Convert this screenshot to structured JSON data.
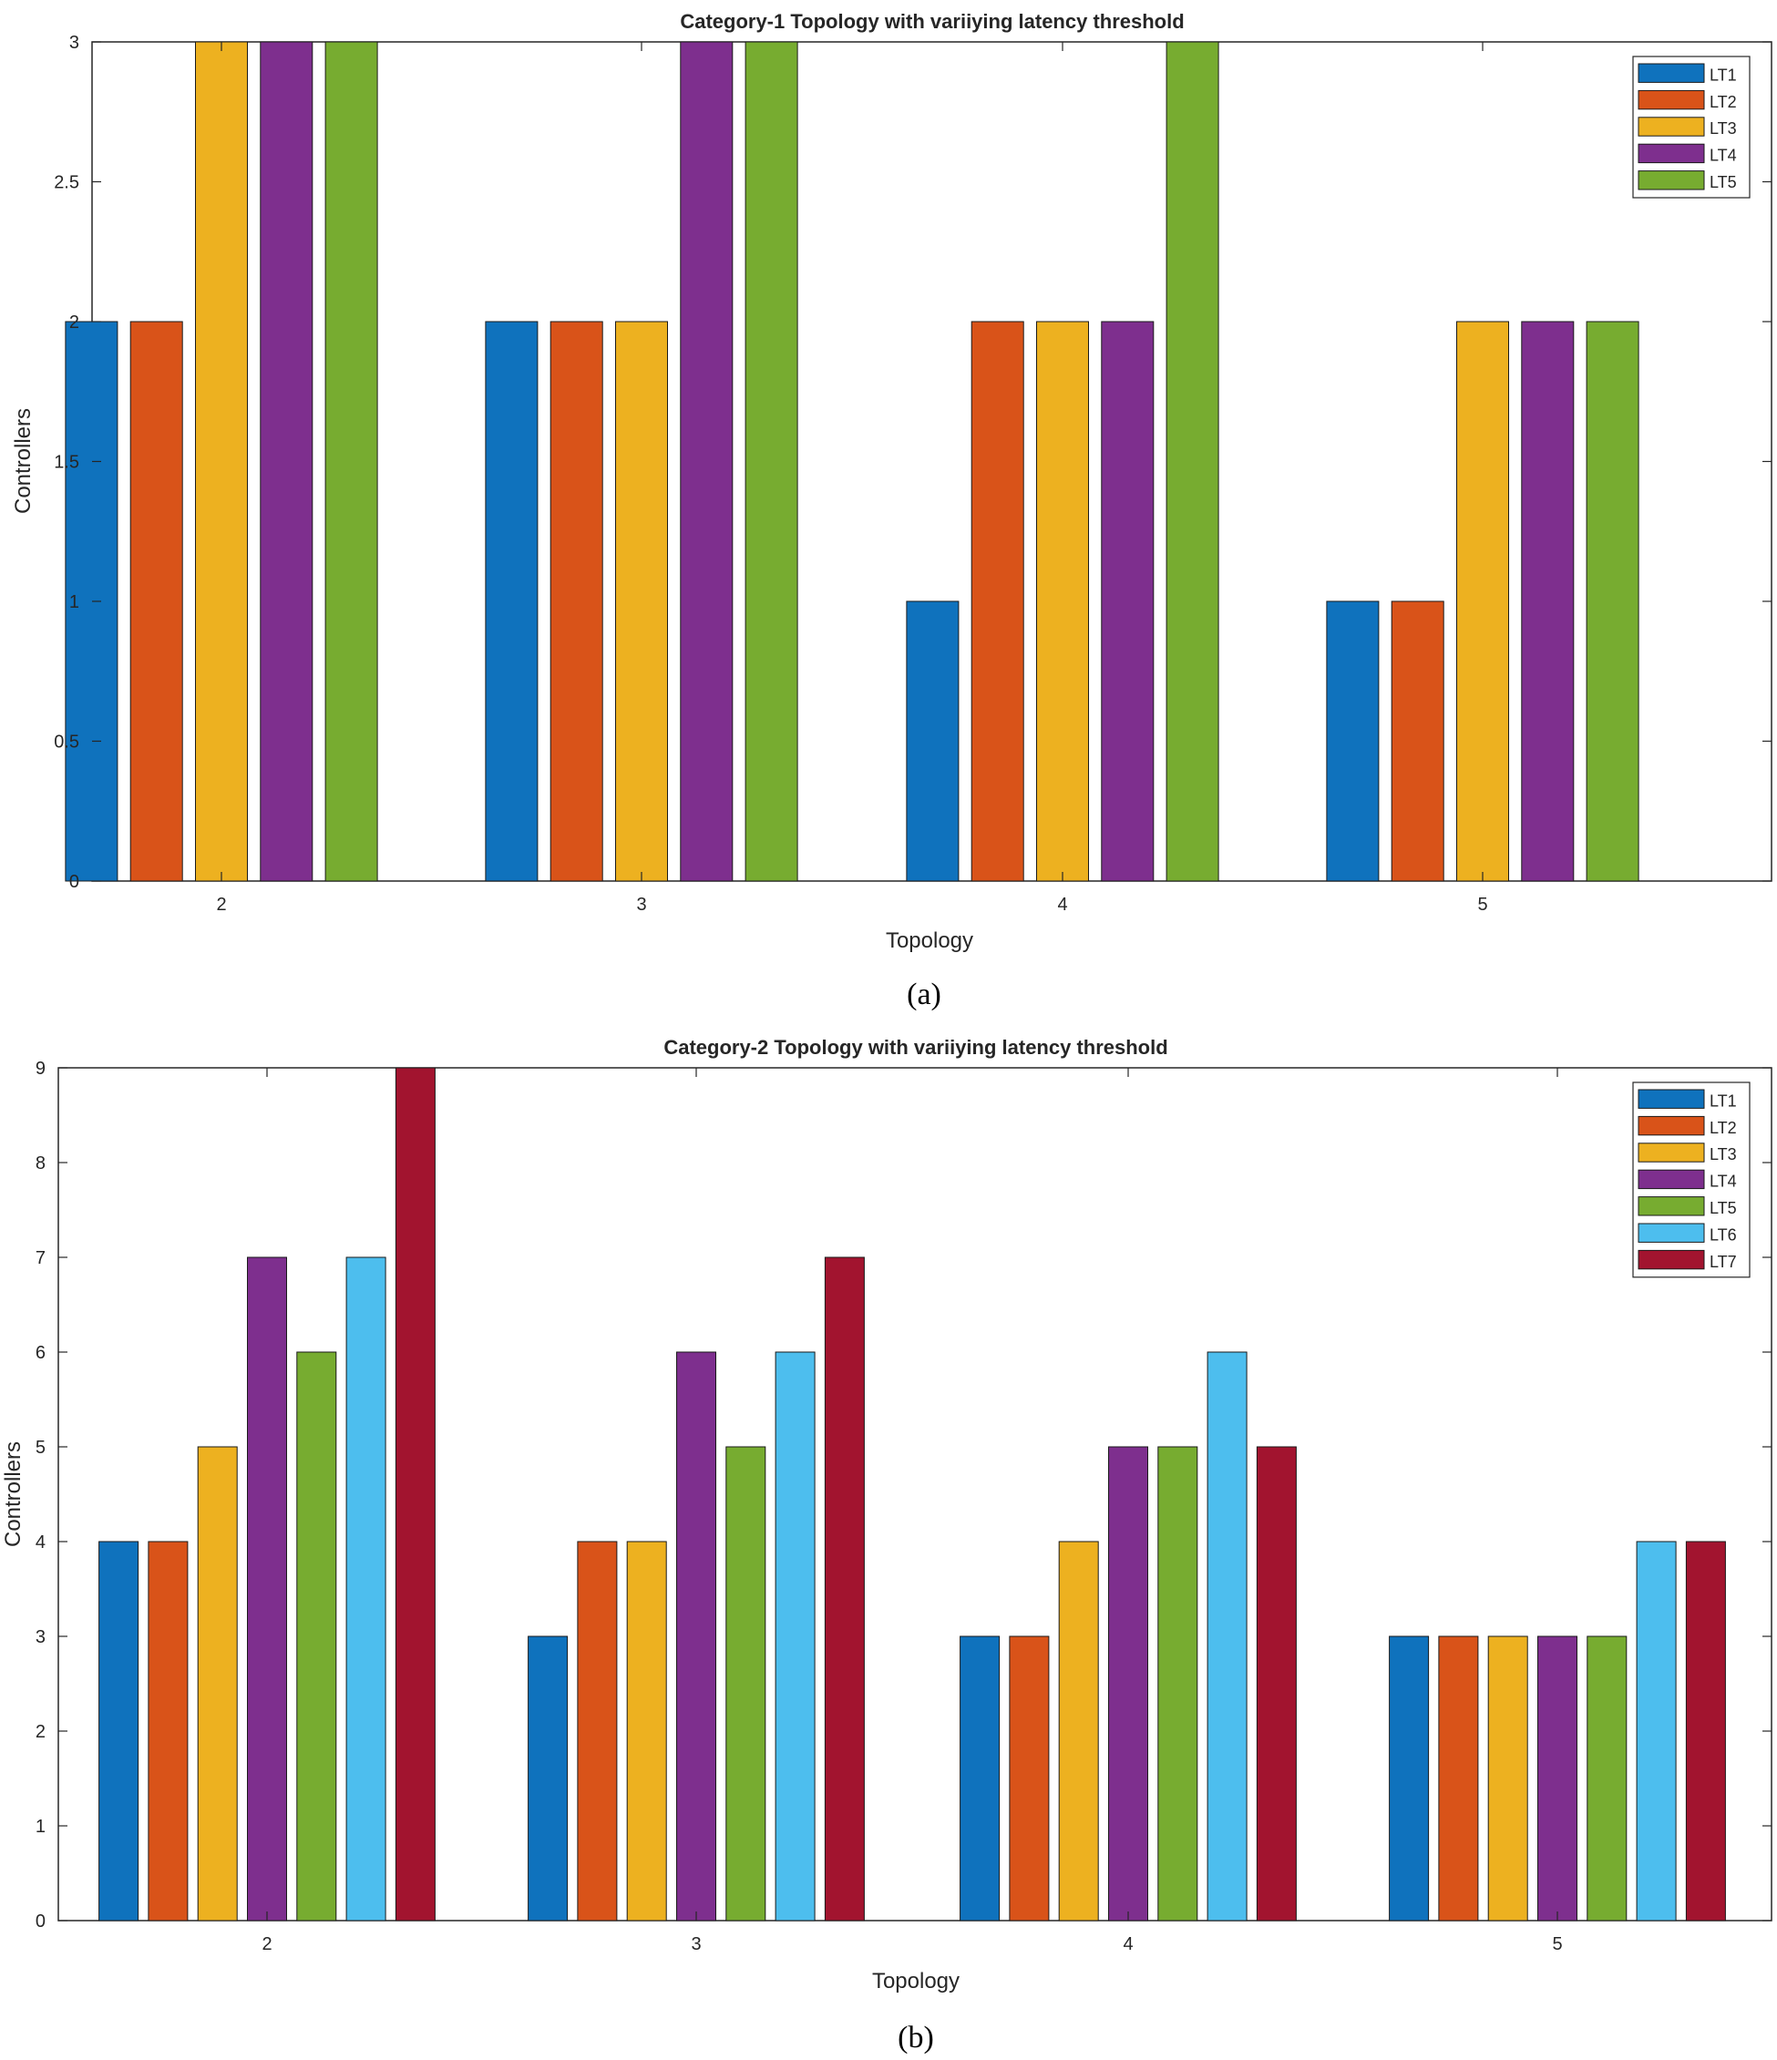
{
  "chart_data": [
    {
      "type": "bar",
      "title": "Category-1 Topology with variiying latency threshold",
      "xlabel": "Topology",
      "ylabel": "Controllers",
      "caption": "(a)",
      "categories": [
        "2",
        "3",
        "4",
        "5"
      ],
      "ylim": [
        0,
        3
      ],
      "yticks": [
        "0",
        "0.5",
        "1",
        "1.5",
        "2",
        "2.5",
        "3"
      ],
      "legend_position": "top-right",
      "series": [
        {
          "name": "LT1",
          "color": "#0f72bd",
          "values": [
            2,
            2,
            1,
            1
          ]
        },
        {
          "name": "LT2",
          "color": "#d95319",
          "values": [
            2,
            2,
            2,
            1
          ]
        },
        {
          "name": "LT3",
          "color": "#edb120",
          "values": [
            3,
            2,
            2,
            2
          ]
        },
        {
          "name": "LT4",
          "color": "#7e2f8e",
          "values": [
            3,
            3,
            2,
            2
          ]
        },
        {
          "name": "LT5",
          "color": "#77ac30",
          "values": [
            3,
            3,
            3,
            2
          ]
        }
      ]
    },
    {
      "type": "bar",
      "title": "Category-2 Topology with variiying latency threshold",
      "xlabel": "Topology",
      "ylabel": "Controllers",
      "caption": "(b)",
      "categories": [
        "2",
        "3",
        "4",
        "5"
      ],
      "ylim": [
        0,
        9
      ],
      "yticks": [
        "0",
        "1",
        "2",
        "3",
        "4",
        "5",
        "6",
        "7",
        "8",
        "9"
      ],
      "legend_position": "top-right",
      "series": [
        {
          "name": "LT1",
          "color": "#0f72bd",
          "values": [
            4,
            3,
            3,
            3
          ]
        },
        {
          "name": "LT2",
          "color": "#d95319",
          "values": [
            4,
            4,
            3,
            3
          ]
        },
        {
          "name": "LT3",
          "color": "#edb120",
          "values": [
            5,
            4,
            4,
            3
          ]
        },
        {
          "name": "LT4",
          "color": "#7e2f8e",
          "values": [
            7,
            6,
            5,
            3
          ]
        },
        {
          "name": "LT5",
          "color": "#77ac30",
          "values": [
            6,
            5,
            5,
            3
          ]
        },
        {
          "name": "LT6",
          "color": "#4dbeee",
          "values": [
            7,
            6,
            6,
            4
          ]
        },
        {
          "name": "LT7",
          "color": "#a2142f",
          "values": [
            9,
            7,
            5,
            4
          ]
        }
      ]
    }
  ]
}
